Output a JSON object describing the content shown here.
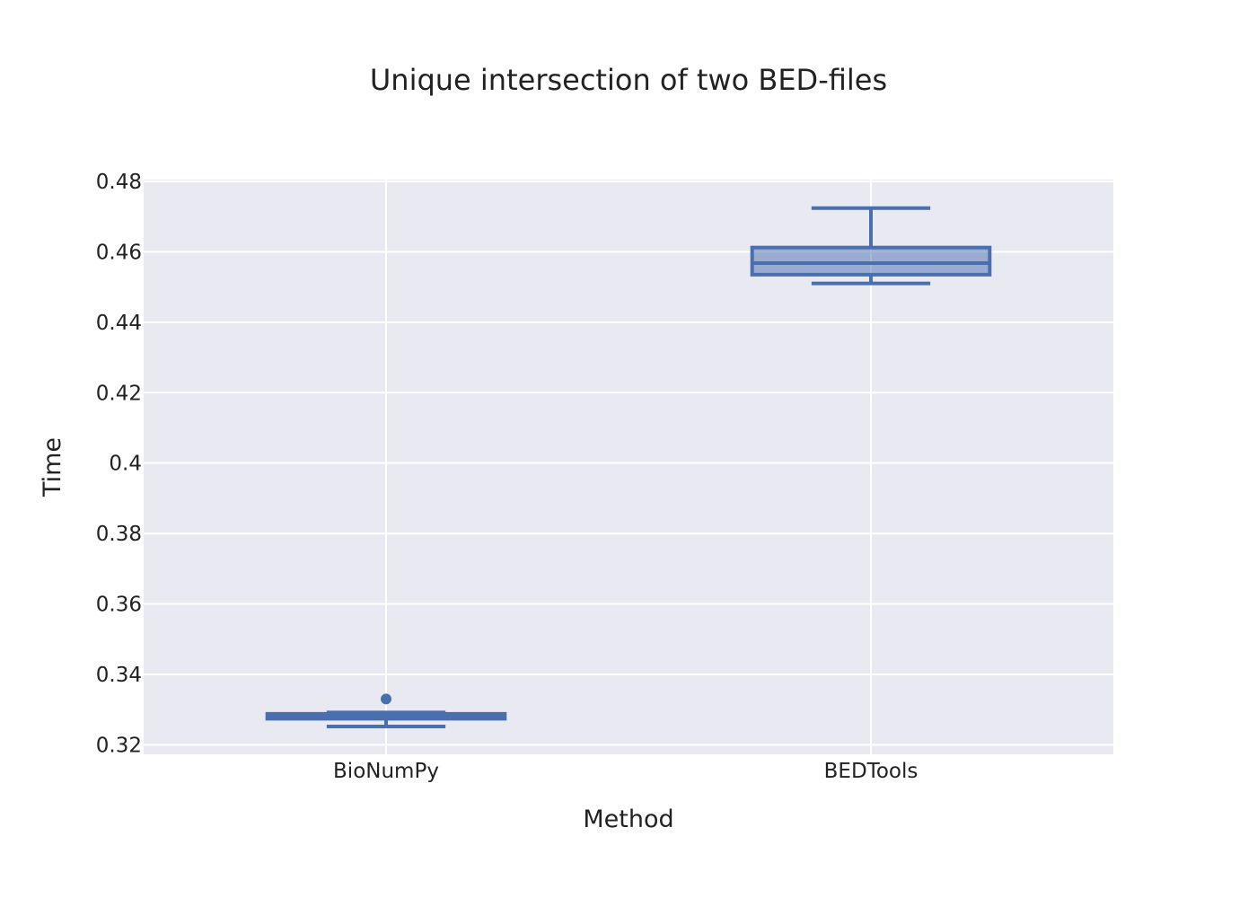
{
  "chart_data": {
    "type": "box",
    "title": "Unique intersection of two BED-files",
    "xlabel": "Method",
    "ylabel": "Time",
    "categories": [
      "BioNumPy",
      "BEDTools"
    ],
    "ylim": [
      0.3173,
      0.4805
    ],
    "yticks": [
      0.32,
      0.34,
      0.36,
      0.38,
      0.4,
      0.42,
      0.44,
      0.46,
      0.48
    ],
    "ytick_labels": [
      "0.32",
      "0.34",
      "0.36",
      "0.38",
      "0.4",
      "0.42",
      "0.44",
      "0.46",
      "0.48"
    ],
    "grid": true,
    "boxes": [
      {
        "category": "BioNumPy",
        "whisker_low": 0.3252,
        "q1": 0.3274,
        "median": 0.328,
        "q3": 0.3288,
        "whisker_high": 0.3292,
        "outliers": [
          0.333
        ]
      },
      {
        "category": "BEDTools",
        "whisker_low": 0.451,
        "q1": 0.4535,
        "median": 0.4568,
        "q3": 0.4612,
        "whisker_high": 0.4724,
        "outliers": []
      }
    ],
    "colors": {
      "box_line": "#4a6fae",
      "box_fill": "rgba(74,111,174,0.5)",
      "plot_bg": "#e9e9f2",
      "grid": "#ffffff"
    }
  }
}
